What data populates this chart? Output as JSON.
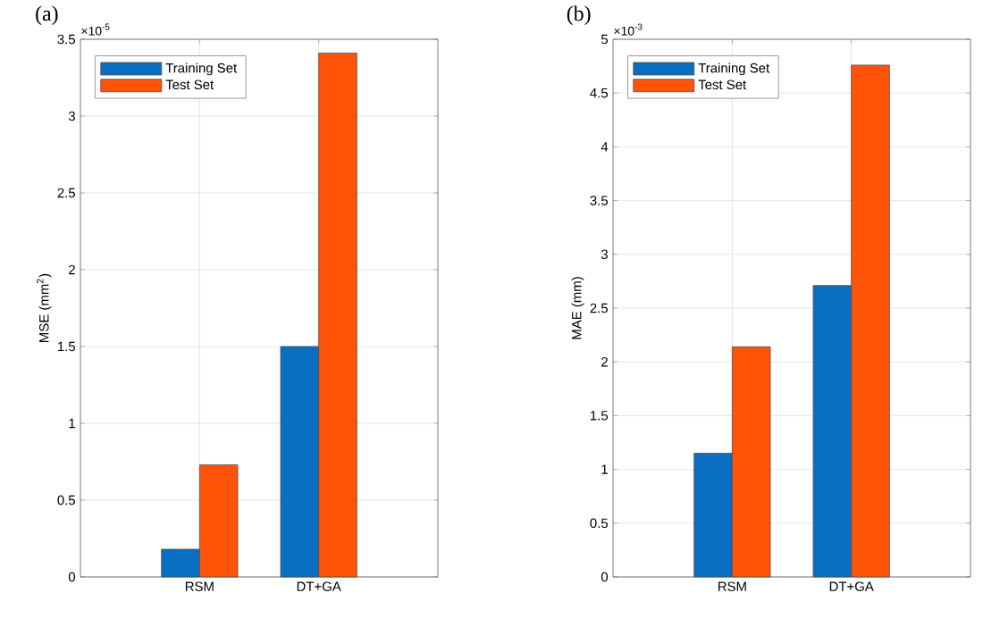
{
  "chart_data": [
    {
      "type": "bar",
      "title": "(a)",
      "ylabel": "MSE (mm$^{2}$)",
      "categories": [
        "RSM",
        "DT+GA"
      ],
      "series": [
        {
          "name": "Training Set",
          "color": "#0a6fc2",
          "values": [
            0.18,
            1.5
          ]
        },
        {
          "name": "Test Set",
          "color": "#ff5308",
          "values": [
            0.73,
            3.41
          ]
        }
      ],
      "ylim": [
        0,
        3.5
      ],
      "yticks": [
        0,
        0.5,
        1,
        1.5,
        2,
        2.5,
        3,
        3.5
      ],
      "annotations": [
        "×10$^{-5}$"
      ],
      "grid": true,
      "legend": "top left"
    },
    {
      "type": "bar",
      "title": "(b)",
      "ylabel": "MAE (mm)",
      "categories": [
        "RSM",
        "DT+GA"
      ],
      "series": [
        {
          "name": "Training Set",
          "color": "#0a6fc2",
          "values": [
            1.15,
            2.71
          ]
        },
        {
          "name": "Test Set",
          "color": "#ff5308",
          "values": [
            2.14,
            4.76
          ]
        }
      ],
      "ylim": [
        0,
        5
      ],
      "yticks": [
        0,
        0.5,
        1,
        1.5,
        2,
        2.5,
        3,
        3.5,
        4,
        4.5,
        5
      ],
      "annotations": [
        "×10$^{-3}$"
      ],
      "grid": true,
      "legend": "top left"
    }
  ]
}
